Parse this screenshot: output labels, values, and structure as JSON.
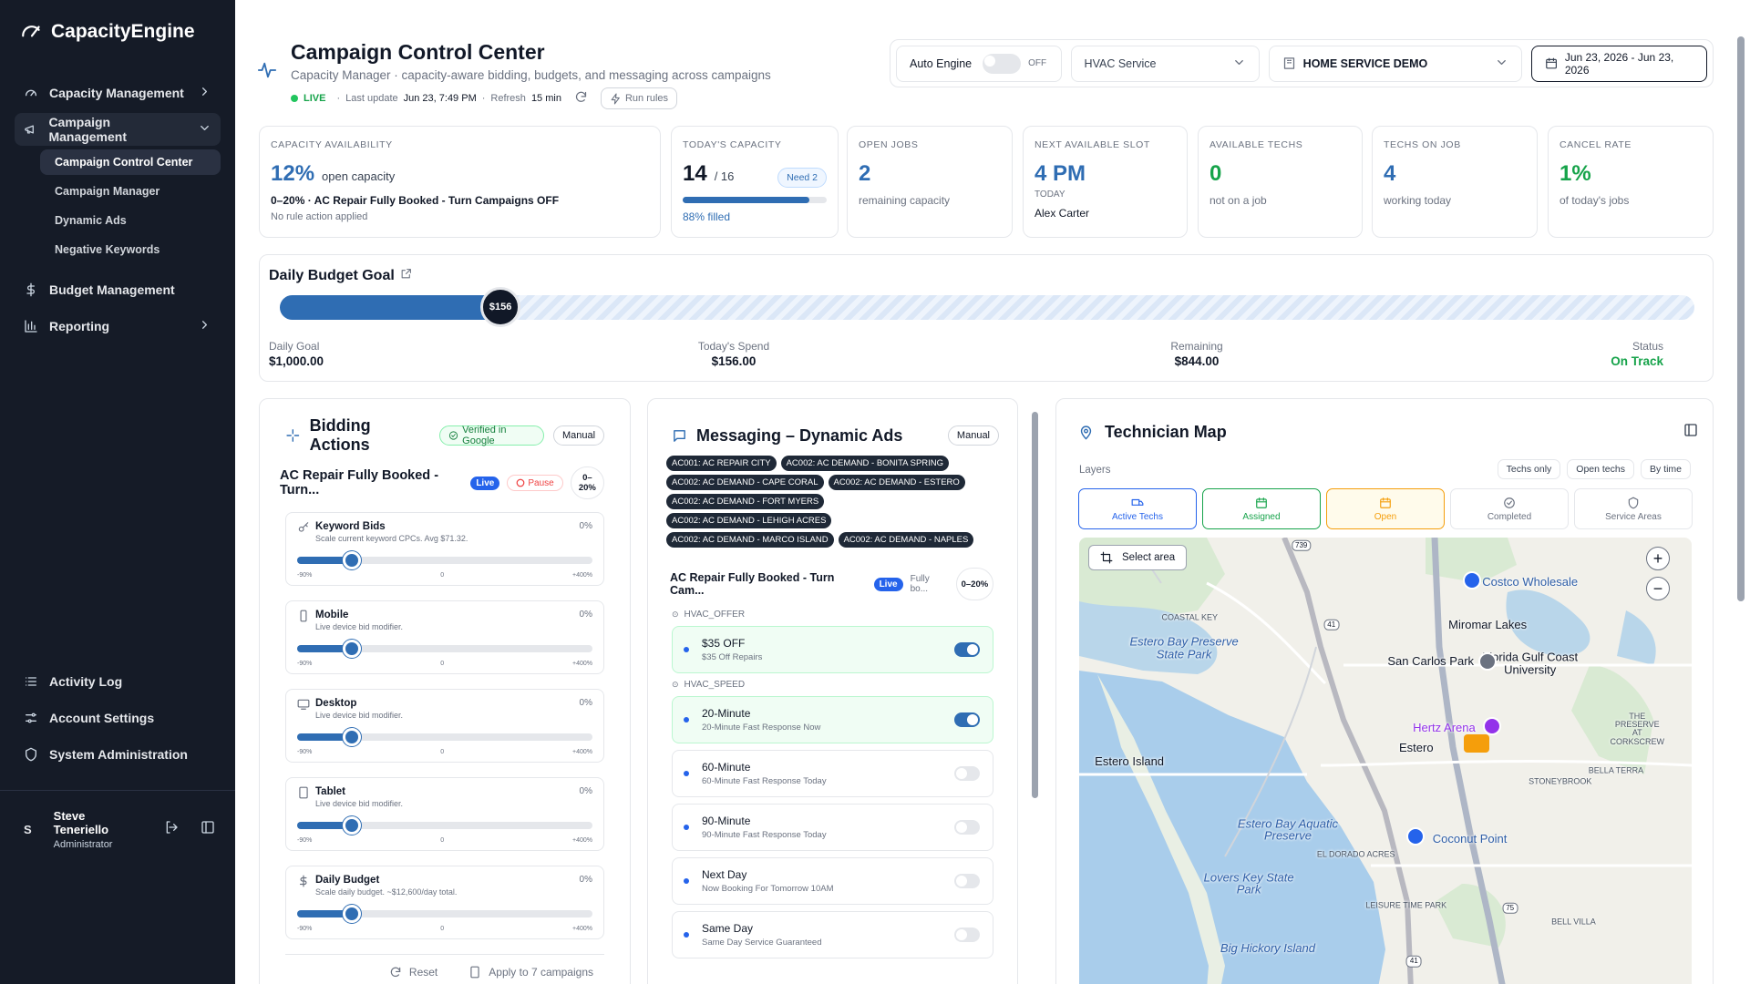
{
  "sidebar": {
    "brand": "CapacityEngine",
    "nav": [
      {
        "label": "Capacity Management",
        "chevron": "right"
      },
      {
        "label": "Campaign Management",
        "chevron": "down",
        "children": [
          {
            "label": "Campaign Control Center",
            "active": true
          },
          {
            "label": "Campaign Manager"
          },
          {
            "label": "Dynamic Ads"
          },
          {
            "label": "Negative Keywords"
          }
        ]
      },
      {
        "label": "Budget Management"
      },
      {
        "label": "Reporting",
        "chevron": "right"
      }
    ],
    "bottom_nav": [
      "Activity Log",
      "Account Settings",
      "System Administration"
    ],
    "user": {
      "initial": "S",
      "name": "Steve Teneriello",
      "role": "Administrator"
    }
  },
  "header": {
    "title": "Campaign Control Center",
    "subtitle": "Capacity Manager · capacity-aware bidding, budgets, and messaging across campaigns",
    "live": "LIVE",
    "last_update_label": "Last update",
    "last_update": "Jun 23, 7:49 PM",
    "refresh_label": "Refresh",
    "refresh": "15 min",
    "run_rules": "Run rules"
  },
  "controls": {
    "auto_engine": "Auto Engine",
    "toggle": "OFF",
    "service": "HVAC Service",
    "account": "HOME SERVICE DEMO",
    "date_range": "Jun 23, 2026 - Jun 23, 2026"
  },
  "kpis": [
    {
      "label": "CAPACITY AVAILABILITY",
      "value": "12%",
      "unit": "open capacity",
      "note": "0–20% · AC Repair Fully Booked - Turn Campaigns OFF",
      "sub": "No rule action applied",
      "color": "#2f6db3"
    },
    {
      "label": "TODAY'S CAPACITY",
      "value": "14",
      "unit": "/ 16",
      "badge": "Need 2",
      "filled": {
        "value": 88,
        "label": "88% filled"
      },
      "color": "#111827"
    },
    {
      "label": "OPEN JOBS",
      "value": "2",
      "note": "remaining capacity",
      "color": "#2f6db3"
    },
    {
      "label": "NEXT AVAILABLE SLOT",
      "value": "4 PM",
      "tag": "TODAY",
      "note": "Alex Carter",
      "color": "#2f6db3"
    },
    {
      "label": "AVAILABLE TECHS",
      "value": "0",
      "note": "not on a job",
      "color": "#16a34a"
    },
    {
      "label": "TECHS ON JOB",
      "value": "4",
      "note": "working today",
      "color": "#2f6db3"
    },
    {
      "label": "CANCEL RATE",
      "value": "1%",
      "note": "of today's jobs",
      "color": "#16a34a"
    }
  ],
  "budget": {
    "title": "Daily Budget Goal",
    "goal": {
      "value": 1000,
      "label": "$1,000.00",
      "caption": "Daily Goal"
    },
    "spend": {
      "value": 156,
      "label": "$156.00",
      "thumb": "$156",
      "caption": "Today's Spend"
    },
    "remaining": {
      "caption": "Remaining",
      "label": "$844.00"
    },
    "status": {
      "caption": "Status",
      "label": "On Track"
    }
  },
  "bidding": {
    "title": "Bidding Actions",
    "verified": "Verified in Google",
    "mode": "Manual",
    "campaign": "AC Repair Fully Booked - Turn...",
    "live": "Live",
    "pause": "Pause",
    "range": "0–20%",
    "sliders": [
      {
        "name": "Keyword Bids",
        "desc": "Scale current keyword CPCs. Avg $71.32.",
        "value": 0,
        "value_label": "0%",
        "min": {
          "value": -90,
          "label": "-90%"
        },
        "mid": 0,
        "max": {
          "value": 400,
          "label": "+400%"
        }
      },
      {
        "name": "Mobile",
        "desc": "Live device bid modifier.",
        "value": 0,
        "value_label": "0%",
        "min": {
          "value": -90,
          "label": "-90%"
        },
        "mid": 0,
        "max": {
          "value": 400,
          "label": "+400%"
        }
      },
      {
        "name": "Desktop",
        "desc": "Live device bid modifier.",
        "value": 0,
        "value_label": "0%",
        "min": {
          "value": -90,
          "label": "-90%"
        },
        "mid": 0,
        "max": {
          "value": 400,
          "label": "+400%"
        }
      },
      {
        "name": "Tablet",
        "desc": "Live device bid modifier.",
        "value": 0,
        "value_label": "0%",
        "min": {
          "value": -90,
          "label": "-90%"
        },
        "mid": 0,
        "max": {
          "value": 400,
          "label": "+400%"
        }
      },
      {
        "name": "Daily Budget",
        "desc": "Scale daily budget. ~$12,600/day total.",
        "value": 0,
        "value_label": "0%",
        "min": {
          "value": -90,
          "label": "-90%"
        },
        "mid": 0,
        "max": {
          "value": 400,
          "label": "+400%"
        }
      }
    ],
    "reset": "Reset",
    "apply": "Apply to 7 campaigns"
  },
  "messaging": {
    "title": "Messaging – Dynamic Ads",
    "mode": "Manual",
    "tags": [
      "AC001: AC REPAIR CITY",
      "AC002: AC DEMAND - BONITA SPRING",
      "AC002: AC DEMAND - CAPE CORAL",
      "AC002: AC DEMAND - ESTERO",
      "AC002: AC DEMAND - FORT MYERS",
      "AC002: AC DEMAND - LEHIGH ACRES",
      "AC002: AC DEMAND - MARCO ISLAND",
      "AC002: AC DEMAND - NAPLES"
    ],
    "campaign": "AC Repair Fully Booked - Turn Cam...",
    "live": "Live",
    "status": "Fully bo...",
    "range": "0–20%",
    "groups": [
      {
        "name": "HVAC_OFFER",
        "items": [
          {
            "title": "$35 OFF",
            "desc": "$35 Off Repairs",
            "on": true
          }
        ]
      },
      {
        "name": "HVAC_SPEED",
        "items": [
          {
            "title": "20-Minute",
            "desc": "20-Minute Fast Response Now",
            "on": true
          },
          {
            "title": "60-Minute",
            "desc": "60-Minute Fast Response Today",
            "on": false
          },
          {
            "title": "90-Minute",
            "desc": "90-Minute Fast Response Today",
            "on": false
          },
          {
            "title": "Next Day",
            "desc": "Now Booking For Tomorrow 10AM",
            "on": false
          },
          {
            "title": "Same Day",
            "desc": "Same Day Service Guaranteed",
            "on": false
          }
        ]
      }
    ]
  },
  "map": {
    "title": "Technician Map",
    "layers_label": "Layers",
    "filters": [
      "Techs only",
      "Open techs",
      "By time"
    ],
    "layers": [
      {
        "label": "Active Techs",
        "color": "#2563eb"
      },
      {
        "label": "Assigned",
        "color": "#16a34a"
      },
      {
        "label": "Open",
        "color": "#f59e0b"
      },
      {
        "label": "Completed",
        "color": "#6b7280"
      },
      {
        "label": "Service Areas",
        "color": "#6b7280"
      }
    ],
    "select_area": "Select area",
    "labels": [
      "Costco Wholesale",
      "Miromar Lakes",
      "COASTAL KEY",
      "Estero Bay Preserve State Park",
      "San Carlos Park",
      "Florida Gulf Coast University",
      "Hertz Arena",
      "Estero",
      "THE PRESERVE AT CORKSCREW",
      "BELLA TERRA",
      "Estero Island",
      "STONEYBROOK",
      "Estero Bay Aquatic Preserve",
      "EL DORADO ACRES",
      "Coconut Point",
      "Lovers Key State Park",
      "LEISURE TIME PARK",
      "BELL VILLA",
      "Big Hickory Island"
    ],
    "roads": [
      "739",
      "41",
      "75",
      "41"
    ]
  }
}
